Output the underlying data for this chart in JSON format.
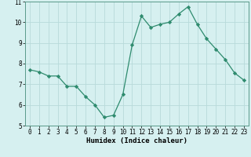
{
  "x": [
    0,
    1,
    2,
    3,
    4,
    5,
    6,
    7,
    8,
    9,
    10,
    11,
    12,
    13,
    14,
    15,
    16,
    17,
    18,
    19,
    20,
    21,
    22,
    23
  ],
  "y": [
    7.7,
    7.6,
    7.4,
    7.4,
    6.9,
    6.9,
    6.4,
    6.0,
    5.4,
    5.5,
    6.5,
    8.9,
    10.3,
    9.75,
    9.9,
    10.0,
    10.4,
    10.75,
    9.9,
    9.2,
    8.7,
    8.2,
    7.55,
    7.2
  ],
  "line_color": "#2e8b6e",
  "marker": "D",
  "marker_size": 2.2,
  "bg_color": "#d6f0f0",
  "grid_color": "#b8dada",
  "xlabel": "Humidex (Indice chaleur)",
  "xlim": [
    -0.5,
    23.5
  ],
  "ylim": [
    5,
    11
  ],
  "yticks": [
    5,
    6,
    7,
    8,
    9,
    10,
    11
  ],
  "xticks": [
    0,
    1,
    2,
    3,
    4,
    5,
    6,
    7,
    8,
    9,
    10,
    11,
    12,
    13,
    14,
    15,
    16,
    17,
    18,
    19,
    20,
    21,
    22,
    23
  ],
  "xlabel_fontsize": 6.5,
  "tick_fontsize": 5.5,
  "linewidth": 0.9
}
